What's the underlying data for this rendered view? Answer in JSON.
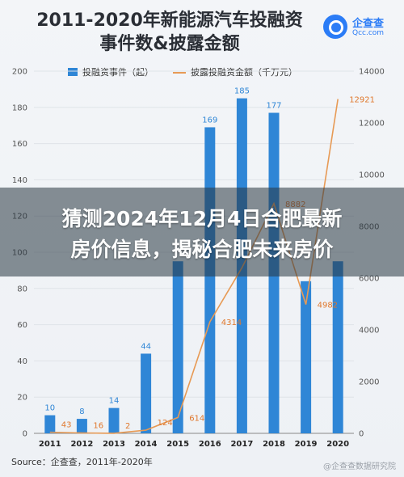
{
  "header": {
    "title_line1": "2011-2020年新能源汽车投融资",
    "title_line2": "事件数&披露金额",
    "logo_name": "企查查",
    "logo_domain": "Qcc.com"
  },
  "legend": {
    "bar_label": "投融资事件（起）",
    "line_label": "披露投融资金额（千万元）"
  },
  "banner": {
    "line1": "猜测2024年12月4日合肥最新",
    "line2": "房价信息，揭秘合肥未来房价"
  },
  "footer": {
    "source": "Source：企查查，2011年-2020年",
    "watermark": "@企查查数据研究院"
  },
  "colors": {
    "bar": "#2f86d6",
    "line": "#e79a55",
    "line_label": "#e0782d"
  },
  "chart_data": {
    "type": "bar",
    "title": "2011-2020年新能源汽车投融资事件数&披露金额",
    "categories": [
      "2011",
      "2012",
      "2013",
      "2014",
      "2015",
      "2016",
      "2017",
      "2018",
      "2019",
      "2020"
    ],
    "left_axis": {
      "ylim": [
        0,
        200
      ],
      "ticks": [
        0,
        20,
        40,
        60,
        80,
        100,
        120,
        140,
        160,
        180,
        200
      ]
    },
    "right_axis": {
      "ylim": [
        0,
        14000
      ],
      "ticks": [
        0,
        2000,
        4000,
        6000,
        8000,
        10000,
        12000,
        14000
      ]
    },
    "series": [
      {
        "name": "投融资事件（起）",
        "type": "bar",
        "axis": "left",
        "values": [
          10,
          8,
          14,
          44,
          95,
          169,
          185,
          177,
          84,
          95
        ],
        "labels": [
          "10",
          "8",
          "14",
          "44",
          "",
          "169",
          "185",
          "177",
          "",
          ""
        ]
      },
      {
        "name": "披露投融资金额（千万元）",
        "type": "line",
        "axis": "right",
        "values": [
          43,
          16,
          2,
          124,
          614,
          4314,
          6400,
          8882,
          4982,
          12921
        ],
        "labels": [
          "43",
          "16",
          "2",
          "124",
          "614",
          "4314",
          "",
          "8882",
          "4982",
          "12921"
        ]
      }
    ],
    "grid": true,
    "legend_position": "top"
  }
}
